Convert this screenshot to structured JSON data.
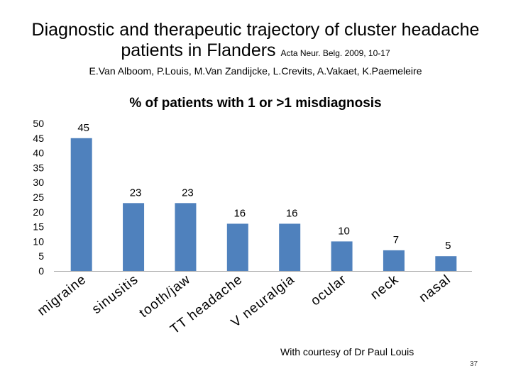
{
  "header": {
    "title_line1": "Diagnostic and therapeutic trajectory of cluster headache",
    "title_line2": "patients in Flanders",
    "citation": "Acta  Neur. Belg. 2009, 10-17",
    "authors": "E.Van Alboom, P.Louis, M.Van Zandijcke, L.Crevits, A.Vakaet, K.Paemeleire"
  },
  "footer": {
    "courtesy": "With courtesy of Dr Paul Louis",
    "page_number": "37"
  },
  "chart_data": {
    "type": "bar",
    "title": "% of patients with 1 or >1 misdiagnosis",
    "xlabel": "",
    "ylabel": "",
    "categories": [
      "migraine",
      "sinusitis",
      "tooth/jaw",
      "TT headache",
      "V neuralgia",
      "ocular",
      "neck",
      "nasal"
    ],
    "values": [
      45,
      23,
      23,
      16,
      16,
      10,
      7,
      5
    ],
    "ylim": [
      0,
      50
    ],
    "yticks": [
      0,
      5,
      10,
      15,
      20,
      25,
      30,
      35,
      40,
      45,
      50
    ],
    "grid": false,
    "legend": "none",
    "bar_color": "#4f81bd"
  }
}
